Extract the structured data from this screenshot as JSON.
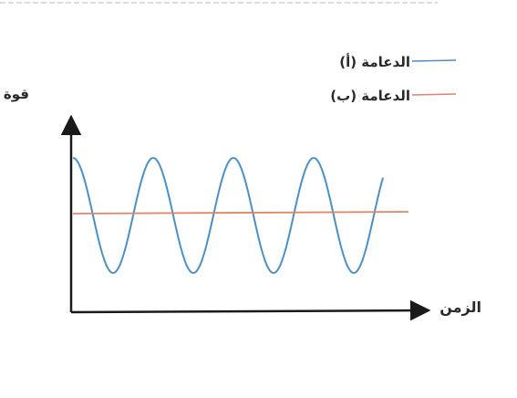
{
  "chart_data": {
    "type": "line",
    "ylabel": "قوة الدعامة",
    "xlabel": "الزمن",
    "legend_placement": "top-right",
    "series": [
      {
        "name": "الدعامة (أ)",
        "color": "#4a90c8",
        "shape": "sine",
        "cycles": 4,
        "phase_start": "maximum"
      },
      {
        "name": "الدعامة (ب)",
        "color": "#e4836a",
        "shape": "constant"
      }
    ],
    "grid": false,
    "tick_labels": false
  }
}
